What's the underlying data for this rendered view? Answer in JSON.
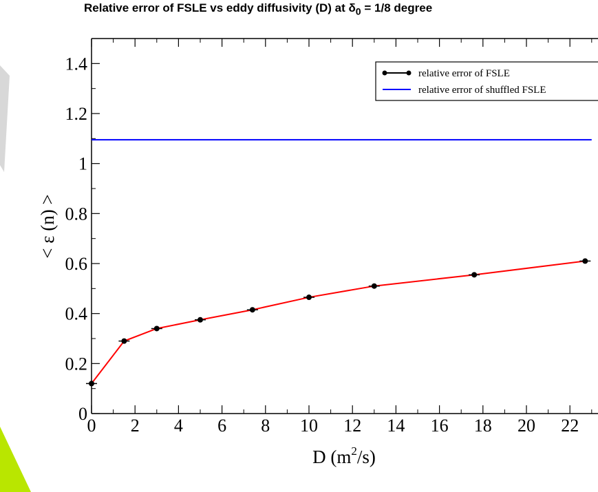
{
  "slide": {
    "title_prefix": "Relative error of FSLE vs eddy diffusivity (D) at δ",
    "title_sub": "0",
    "title_suffix": " = 1/8 degree"
  },
  "chart_data": {
    "type": "line",
    "title": "",
    "xlabel": {
      "text": "D  (m",
      "sup": "2",
      "tail": "/s)"
    },
    "ylabel": "< ε (n) >",
    "xlim": [
      0,
      23
    ],
    "ylim": [
      0,
      1.5
    ],
    "x_ticks": [
      0,
      2,
      4,
      6,
      8,
      10,
      12,
      14,
      16,
      18,
      20,
      22
    ],
    "x_tick_labels": [
      "0",
      "2",
      "4",
      "6",
      "8",
      "10",
      "12",
      "14",
      "16",
      "18",
      "20",
      "22"
    ],
    "y_ticks": [
      0,
      0.2,
      0.4,
      0.6,
      0.8,
      1.0,
      1.2,
      1.4
    ],
    "y_tick_labels": [
      "0",
      "0.2",
      "0.4",
      "0.6",
      "0.8",
      "1",
      "1.2",
      "1.4"
    ],
    "grid": false,
    "legend_position": "top-right",
    "series": [
      {
        "name": "relative error of FSLE",
        "color": "#ff0000",
        "marker": "circle",
        "x": [
          0,
          1.5,
          3,
          5,
          7.4,
          10,
          13,
          17.6,
          22.7
        ],
        "y": [
          0.12,
          0.29,
          0.34,
          0.375,
          0.415,
          0.465,
          0.51,
          0.555,
          0.61
        ]
      },
      {
        "name": "relative error of shuffled FSLE",
        "color": "#0000ff",
        "marker": "none",
        "x": [
          0,
          23
        ],
        "y": [
          1.095,
          1.095
        ]
      }
    ]
  }
}
